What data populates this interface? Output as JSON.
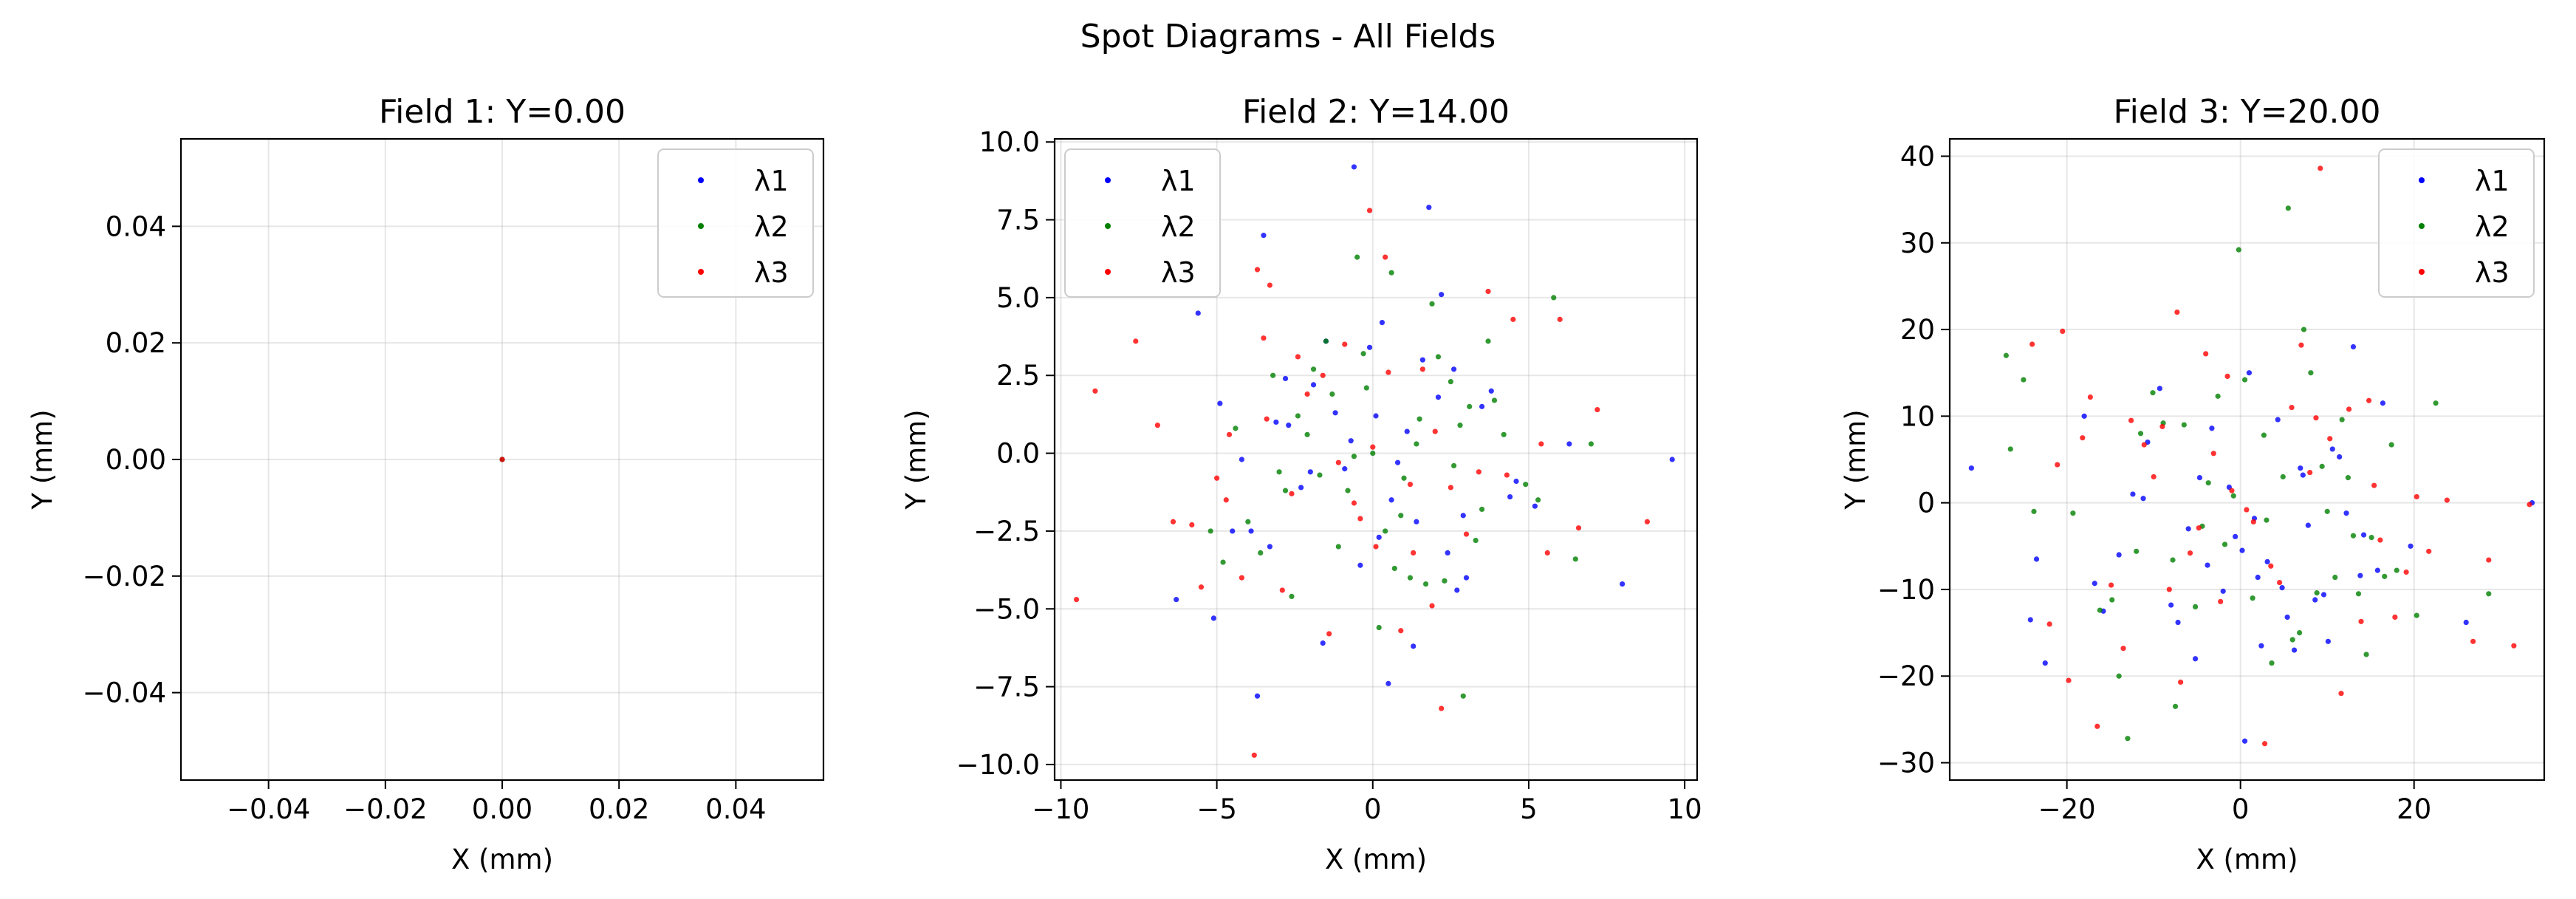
{
  "figure": {
    "title": "Spot Diagrams - All Fields"
  },
  "chart_data": [
    {
      "type": "scatter",
      "title": "Field 1: Y=0.00",
      "xlabel": "X (mm)",
      "ylabel": "Y (mm)",
      "xlim": [
        -0.055,
        0.055
      ],
      "ylim": [
        -0.055,
        0.055
      ],
      "xticks": [
        -0.04,
        -0.02,
        0.0,
        0.02,
        0.04
      ],
      "xticklabels": [
        "−0.04",
        "−0.02",
        "0.00",
        "0.02",
        "0.04"
      ],
      "yticks": [
        -0.04,
        -0.02,
        0.0,
        0.02,
        0.04
      ],
      "yticklabels": [
        "−0.04",
        "−0.02",
        "0.00",
        "0.02",
        "0.04"
      ],
      "grid": true,
      "legend_position": "top-right",
      "series": [
        {
          "name": "λ1",
          "color": "#0000ff",
          "x": [
            0.0
          ],
          "y": [
            0.0
          ]
        },
        {
          "name": "λ2",
          "color": "#008000",
          "x": [
            0.0
          ],
          "y": [
            0.0
          ]
        },
        {
          "name": "λ3",
          "color": "#ff0000",
          "x": [
            0.0
          ],
          "y": [
            0.0
          ]
        }
      ]
    },
    {
      "type": "scatter",
      "title": "Field 2: Y=14.00",
      "xlabel": "X (mm)",
      "ylabel": "Y (mm)",
      "xlim": [
        -10.2,
        10.4
      ],
      "ylim": [
        -10.5,
        10.1
      ],
      "xticks": [
        -10,
        -5,
        0,
        5,
        10
      ],
      "xticklabels": [
        "−10",
        "−5",
        "0",
        "5",
        "10"
      ],
      "yticks": [
        -10,
        -7.5,
        -5,
        -2.5,
        0,
        2.5,
        5,
        7.5,
        10
      ],
      "yticklabels": [
        "−10.0",
        "−7.5",
        "−5.0",
        "−2.5",
        "0.0",
        "2.5",
        "5.0",
        "7.5",
        "10.0"
      ],
      "grid": true,
      "legend_position": "top-left",
      "series": [
        {
          "name": "λ1",
          "color": "#0000ff",
          "x": [
            -0.6,
            -5.6,
            -3.5,
            1.8,
            2.2,
            -4.9,
            0.3,
            -1.2,
            2.6,
            6.3,
            -2.0,
            0.6,
            -3.3,
            3.5,
            9.6,
            -6.3,
            8.0,
            -3.7,
            0.5,
            1.3,
            -1.6,
            -4.5,
            2.9,
            -0.1,
            -2.7,
            3.8,
            -0.9,
            4.4,
            -5.1,
            1.1,
            0.2,
            -1.9,
            2.4,
            -3.1,
            5.2,
            -0.4,
            1.6,
            -2.3,
            0.8,
            -1.5,
            3.0,
            -4.2,
            2.1,
            -0.7,
            1.4,
            -2.8,
            4.6,
            -3.9,
            0.1,
            2.7
          ],
          "y": [
            9.2,
            4.5,
            7.0,
            7.9,
            5.1,
            1.6,
            4.2,
            1.3,
            2.7,
            0.3,
            -0.6,
            -1.5,
            -3.0,
            1.5,
            -0.2,
            -4.7,
            -4.2,
            -7.8,
            -7.4,
            -6.2,
            -6.1,
            -2.5,
            -2.0,
            3.4,
            0.9,
            2.0,
            -0.5,
            -1.4,
            -5.3,
            0.7,
            -2.7,
            2.2,
            -3.2,
            1.0,
            -1.7,
            -3.6,
            3.0,
            -1.1,
            -0.3,
            3.6,
            -4.0,
            -0.2,
            1.8,
            0.4,
            -2.2,
            2.4,
            -0.9,
            -2.5,
            1.2,
            -4.4
          ]
        },
        {
          "name": "λ2",
          "color": "#008000",
          "x": [
            -3.2,
            -1.5,
            0.6,
            2.1,
            3.7,
            5.8,
            -4.4,
            -2.4,
            -0.2,
            1.4,
            3.1,
            6.5,
            -5.2,
            -3.0,
            -0.8,
            0.9,
            2.6,
            4.2,
            -1.1,
            1.7,
            -2.6,
            0.2,
            3.5,
            -4.0,
            2.9,
            -0.5,
            1.0,
            -1.9,
            4.9,
            7.0,
            -3.6,
            0.4,
            2.3,
            -2.1,
            1.5,
            -0.6,
            3.3,
            -1.3,
            0.7,
            2.8,
            -4.8,
            1.9,
            -0.3,
            5.3,
            -2.8,
            0.0,
            2.5,
            -1.7,
            1.2,
            3.9
          ],
          "y": [
            2.5,
            3.6,
            5.8,
            3.1,
            3.6,
            5.0,
            0.8,
            1.2,
            2.1,
            0.3,
            1.5,
            -3.4,
            -2.5,
            -0.6,
            -1.2,
            -2.0,
            -0.4,
            0.6,
            -3.0,
            -4.2,
            -4.6,
            -5.6,
            -1.8,
            -2.2,
            -7.8,
            6.3,
            -0.8,
            2.7,
            -1.0,
            0.3,
            -3.2,
            -2.5,
            -4.1,
            0.6,
            1.1,
            -0.1,
            -2.8,
            1.9,
            -3.7,
            0.9,
            -3.5,
            4.8,
            3.2,
            -1.5,
            -1.2,
            0.0,
            2.3,
            -0.7,
            -4.0,
            1.7
          ]
        },
        {
          "name": "λ3",
          "color": "#ff0000",
          "x": [
            -9.5,
            -8.9,
            -7.6,
            -6.9,
            -5.8,
            -4.7,
            -3.8,
            -3.7,
            -3.3,
            -2.4,
            -1.6,
            -0.9,
            -0.1,
            0.4,
            1.2,
            1.9,
            2.2,
            3.7,
            4.5,
            5.6,
            6.0,
            6.6,
            7.2,
            8.8,
            -4.2,
            -2.9,
            -1.4,
            0.1,
            1.6,
            3.0,
            4.3,
            -6.4,
            -5.5,
            -2.1,
            -0.6,
            0.9,
            2.5,
            5.4,
            -3.4,
            -1.1,
            0.5,
            2.0,
            -4.6,
            -2.6,
            -0.4,
            1.3,
            3.4,
            -5.0,
            0.0,
            -3.5
          ],
          "y": [
            -4.7,
            2.0,
            3.6,
            0.9,
            -2.3,
            -1.5,
            -9.7,
            5.9,
            5.4,
            3.1,
            2.5,
            3.5,
            7.8,
            6.3,
            -1.0,
            -4.9,
            -8.2,
            5.2,
            4.3,
            -3.2,
            4.3,
            -2.4,
            1.4,
            -2.2,
            -4.0,
            -4.4,
            -5.8,
            -3.0,
            2.7,
            -2.6,
            -0.7,
            -2.2,
            -4.3,
            1.9,
            -1.6,
            -5.7,
            -1.1,
            0.3,
            1.1,
            -0.3,
            2.6,
            0.7,
            0.6,
            -1.3,
            -2.1,
            -3.2,
            -0.6,
            -0.8,
            0.2,
            3.7
          ]
        }
      ]
    },
    {
      "type": "scatter",
      "title": "Field 3: Y=20.00",
      "xlabel": "X (mm)",
      "ylabel": "Y (mm)",
      "xlim": [
        -33.5,
        35.0
      ],
      "ylim": [
        -32.0,
        42.0
      ],
      "xticks": [
        -20,
        0,
        20
      ],
      "xticklabels": [
        "−20",
        "0",
        "20"
      ],
      "yticks": [
        -30,
        -20,
        -10,
        0,
        10,
        20,
        30,
        40
      ],
      "yticklabels": [
        "−30",
        "−20",
        "−10",
        "0",
        "10",
        "20",
        "30",
        "40"
      ],
      "grid": true,
      "legend_position": "top-right",
      "series": [
        {
          "name": "λ1",
          "color": "#0000ff",
          "x": [
            -31.0,
            -23.5,
            -22.5,
            -24.2,
            -15.8,
            -7.2,
            -5.2,
            0.5,
            2.4,
            6.2,
            10.1,
            13.0,
            16.4,
            19.6,
            26.0,
            33.6,
            -12.4,
            -9.3,
            -3.3,
            1.0,
            4.3,
            7.8,
            11.4,
            -18.0,
            -14.0,
            -6.0,
            -2.0,
            3.1,
            8.6,
            14.2,
            -10.7,
            -4.7,
            -0.6,
            5.4,
            9.6,
            15.8,
            -8.0,
            -1.3,
            2.0,
            6.9,
            12.2,
            -16.8,
            -11.2,
            0.2,
            4.8,
            10.6,
            -3.8,
            1.6,
            7.2,
            13.8
          ],
          "y": [
            4.0,
            -6.5,
            -18.5,
            -13.5,
            -12.5,
            -13.8,
            -18.0,
            -27.5,
            -16.5,
            -17.0,
            -16.0,
            18.0,
            11.5,
            -5.0,
            -13.8,
            0.0,
            1.0,
            13.2,
            8.6,
            15.0,
            9.6,
            -2.6,
            5.3,
            10.0,
            -6.0,
            -3.0,
            -10.2,
            -6.8,
            -11.2,
            -3.7,
            7.0,
            2.9,
            -3.9,
            -13.2,
            -10.6,
            -7.8,
            -11.8,
            1.8,
            -8.6,
            4.0,
            -1.2,
            -9.3,
            0.5,
            -5.5,
            -9.8,
            6.2,
            -7.2,
            -1.8,
            3.2,
            -8.4
          ]
        },
        {
          "name": "λ2",
          "color": "#008000",
          "x": [
            -27.0,
            -26.5,
            -25.0,
            -23.8,
            -14.0,
            -13.0,
            -7.5,
            -5.2,
            -0.2,
            5.5,
            7.3,
            10.0,
            13.6,
            17.4,
            20.3,
            22.5,
            28.6,
            -19.3,
            -16.2,
            -11.5,
            -8.9,
            -3.7,
            0.5,
            3.6,
            8.1,
            11.7,
            15.1,
            -12.0,
            -6.5,
            -1.8,
            2.7,
            6.8,
            10.9,
            14.5,
            18.0,
            -10.1,
            -4.4,
            1.4,
            4.9,
            9.4,
            13.0,
            -14.8,
            -7.8,
            -2.6,
            3.0,
            8.8,
            12.4,
            16.6,
            -0.8,
            6.0
          ],
          "y": [
            17.0,
            6.2,
            14.2,
            -1.0,
            -20.0,
            -27.2,
            -23.5,
            -12.0,
            29.2,
            34.0,
            20.0,
            -1.0,
            -10.5,
            6.7,
            -13.0,
            11.5,
            -10.5,
            -1.2,
            -12.4,
            8.0,
            9.2,
            2.3,
            14.2,
            -18.5,
            15.0,
            9.6,
            -4.0,
            -5.6,
            9.0,
            -4.8,
            7.8,
            -15.0,
            -8.6,
            -17.5,
            -7.8,
            12.7,
            -2.7,
            -11.0,
            3.0,
            4.2,
            -3.8,
            -11.2,
            -6.6,
            12.3,
            -2.0,
            -10.4,
            2.9,
            -8.5,
            0.8,
            -15.8
          ]
        },
        {
          "name": "λ3",
          "color": "#ff0000",
          "x": [
            -24.0,
            -22.0,
            -20.5,
            -19.8,
            -18.2,
            -16.5,
            -12.6,
            -9.0,
            -7.3,
            -4.0,
            -1.5,
            2.8,
            7.0,
            9.2,
            11.6,
            14.8,
            17.8,
            20.3,
            23.8,
            28.6,
            31.5,
            33.3,
            -17.3,
            -13.5,
            -10.0,
            -5.8,
            -2.3,
            1.5,
            4.5,
            8.0,
            12.5,
            16.1,
            -21.1,
            -14.9,
            -11.1,
            -6.9,
            -3.1,
            0.7,
            5.9,
            10.3,
            13.9,
            19.1,
            -8.2,
            -4.8,
            -1.0,
            3.5,
            8.7,
            15.4,
            21.7,
            26.8
          ],
          "y": [
            18.3,
            -14.0,
            19.8,
            -20.5,
            7.5,
            -25.8,
            9.5,
            8.8,
            22.0,
            17.2,
            14.6,
            -27.8,
            18.2,
            38.6,
            -22.0,
            11.8,
            -13.2,
            0.7,
            0.3,
            -6.6,
            -16.5,
            -0.2,
            12.2,
            -16.8,
            3.0,
            -5.8,
            -11.4,
            -2.2,
            -9.2,
            3.5,
            10.8,
            -4.3,
            4.4,
            -9.5,
            6.7,
            -20.7,
            5.7,
            -0.8,
            11.0,
            7.4,
            -13.7,
            -8.0,
            -10.0,
            -2.9,
            1.4,
            -7.3,
            9.8,
            2.0,
            -5.6,
            -16.0
          ]
        }
      ]
    }
  ]
}
